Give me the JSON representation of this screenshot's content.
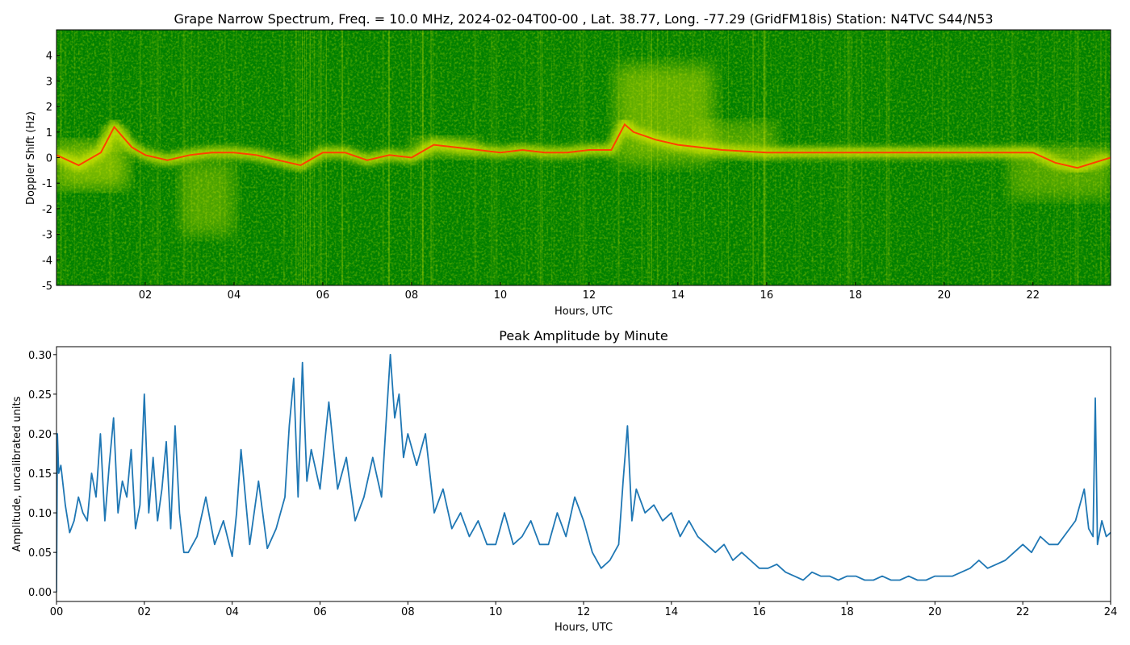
{
  "figure": {
    "background": "#ffffff"
  },
  "chart_data": [
    {
      "type": "heatmap",
      "title": "Grape Narrow Spectrum, Freq. = 10.0 MHz, 2024-02-04T00-00 , Lat.  38.77, Long. -77.29 (GridFM18is) Station: N4TVC S44/N53",
      "xlabel": "Hours, UTC",
      "ylabel": "Doppler Shift (Hz)",
      "xlim": [
        0,
        23.75
      ],
      "ylim": [
        -5,
        5
      ],
      "xticks": [
        2,
        4,
        6,
        8,
        10,
        12,
        14,
        16,
        18,
        20,
        22
      ],
      "xtick_labels": [
        "02",
        "04",
        "06",
        "08",
        "10",
        "12",
        "14",
        "16",
        "18",
        "20",
        "22"
      ],
      "yticks": [
        -5,
        -4,
        -3,
        -2,
        -1,
        0,
        1,
        2,
        3,
        4
      ],
      "ytick_labels": [
        "-5",
        "-4",
        "-3",
        "-2",
        "-1",
        "0",
        "1",
        "2",
        "3",
        "4"
      ],
      "colors": {
        "background": "#008000",
        "mid": "#d8e600",
        "high": "#ff4000"
      },
      "doppler_trace": {
        "x": [
          0,
          0.5,
          1.0,
          1.3,
          1.7,
          2.0,
          2.5,
          3.0,
          3.5,
          4.0,
          4.5,
          5.0,
          5.5,
          6.0,
          6.5,
          7.0,
          7.5,
          8.0,
          8.5,
          9.0,
          9.5,
          10.0,
          10.5,
          11.0,
          11.5,
          12.0,
          12.5,
          12.8,
          13.0,
          13.5,
          14.0,
          14.5,
          15.0,
          16.0,
          17.0,
          18.0,
          19.0,
          20.0,
          21.0,
          22.0,
          22.5,
          23.0,
          23.75
        ],
        "y": [
          0.1,
          -0.3,
          0.2,
          1.2,
          0.4,
          0.1,
          -0.1,
          0.1,
          0.2,
          0.2,
          0.1,
          -0.1,
          -0.3,
          0.2,
          0.2,
          -0.1,
          0.1,
          0.0,
          0.5,
          0.4,
          0.3,
          0.2,
          0.3,
          0.2,
          0.2,
          0.3,
          0.3,
          1.3,
          1.0,
          0.7,
          0.5,
          0.4,
          0.3,
          0.2,
          0.2,
          0.2,
          0.2,
          0.2,
          0.2,
          0.2,
          -0.2,
          -0.4,
          0.0
        ]
      }
    },
    {
      "type": "line",
      "title": "Peak Amplitude by Minute",
      "xlabel": "Hours, UTC",
      "ylabel": "Amplitude, uncalibrated units",
      "xlim": [
        0,
        24
      ],
      "ylim": [
        -0.012,
        0.31
      ],
      "xticks": [
        0,
        2,
        4,
        6,
        8,
        10,
        12,
        14,
        16,
        18,
        20,
        22,
        24
      ],
      "xtick_labels": [
        "00",
        "02",
        "04",
        "06",
        "08",
        "10",
        "12",
        "14",
        "16",
        "18",
        "20",
        "22",
        "24"
      ],
      "yticks": [
        0.0,
        0.05,
        0.1,
        0.15,
        0.2,
        0.25,
        0.3
      ],
      "ytick_labels": [
        "0.00",
        "0.05",
        "0.10",
        "0.15",
        "0.20",
        "0.25",
        "0.30"
      ],
      "line_color": "#1f77b4",
      "series": [
        {
          "x": [
            0,
            0.02,
            0.05,
            0.1,
            0.2,
            0.3,
            0.4,
            0.5,
            0.6,
            0.7,
            0.8,
            0.9,
            1.0,
            1.1,
            1.2,
            1.3,
            1.4,
            1.5,
            1.6,
            1.7,
            1.8,
            1.9,
            2.0,
            2.1,
            2.2,
            2.3,
            2.4,
            2.5,
            2.6,
            2.7,
            2.8,
            2.9,
            3.0,
            3.2,
            3.4,
            3.6,
            3.8,
            4.0,
            4.1,
            4.2,
            4.4,
            4.6,
            4.8,
            5.0,
            5.2,
            5.3,
            5.4,
            5.5,
            5.6,
            5.7,
            5.8,
            6.0,
            6.2,
            6.4,
            6.6,
            6.8,
            7.0,
            7.2,
            7.4,
            7.5,
            7.6,
            7.7,
            7.8,
            7.9,
            8.0,
            8.2,
            8.4,
            8.6,
            8.8,
            9.0,
            9.2,
            9.4,
            9.6,
            9.8,
            10.0,
            10.2,
            10.4,
            10.6,
            10.8,
            11.0,
            11.2,
            11.4,
            11.6,
            11.8,
            12.0,
            12.2,
            12.4,
            12.6,
            12.8,
            12.9,
            13.0,
            13.1,
            13.2,
            13.4,
            13.6,
            13.8,
            14.0,
            14.2,
            14.4,
            14.6,
            14.8,
            15.0,
            15.2,
            15.4,
            15.6,
            15.8,
            16.0,
            16.2,
            16.4,
            16.6,
            16.8,
            17.0,
            17.2,
            17.4,
            17.6,
            17.8,
            18.0,
            18.2,
            18.4,
            18.6,
            18.8,
            19.0,
            19.2,
            19.4,
            19.6,
            19.8,
            20.0,
            20.2,
            20.4,
            20.6,
            20.8,
            21.0,
            21.2,
            21.4,
            21.6,
            21.8,
            22.0,
            22.2,
            22.4,
            22.6,
            22.8,
            23.0,
            23.2,
            23.4,
            23.5,
            23.6,
            23.65,
            23.7,
            23.8,
            23.9,
            24.0
          ],
          "values": [
            0.0,
            0.2,
            0.15,
            0.16,
            0.11,
            0.075,
            0.09,
            0.12,
            0.1,
            0.09,
            0.15,
            0.12,
            0.2,
            0.09,
            0.16,
            0.22,
            0.1,
            0.14,
            0.12,
            0.18,
            0.08,
            0.11,
            0.25,
            0.1,
            0.17,
            0.09,
            0.13,
            0.19,
            0.08,
            0.21,
            0.1,
            0.05,
            0.05,
            0.07,
            0.12,
            0.06,
            0.09,
            0.045,
            0.1,
            0.18,
            0.06,
            0.14,
            0.055,
            0.08,
            0.12,
            0.21,
            0.27,
            0.12,
            0.29,
            0.14,
            0.18,
            0.13,
            0.24,
            0.13,
            0.17,
            0.09,
            0.12,
            0.17,
            0.12,
            0.21,
            0.3,
            0.22,
            0.25,
            0.17,
            0.2,
            0.16,
            0.2,
            0.1,
            0.13,
            0.08,
            0.1,
            0.07,
            0.09,
            0.06,
            0.06,
            0.1,
            0.06,
            0.07,
            0.09,
            0.06,
            0.06,
            0.1,
            0.07,
            0.12,
            0.09,
            0.05,
            0.03,
            0.04,
            0.06,
            0.14,
            0.21,
            0.09,
            0.13,
            0.1,
            0.11,
            0.09,
            0.1,
            0.07,
            0.09,
            0.07,
            0.06,
            0.05,
            0.06,
            0.04,
            0.05,
            0.04,
            0.03,
            0.03,
            0.035,
            0.025,
            0.02,
            0.015,
            0.025,
            0.02,
            0.02,
            0.015,
            0.02,
            0.02,
            0.015,
            0.015,
            0.02,
            0.015,
            0.015,
            0.02,
            0.015,
            0.015,
            0.02,
            0.02,
            0.02,
            0.025,
            0.03,
            0.04,
            0.03,
            0.035,
            0.04,
            0.05,
            0.06,
            0.05,
            0.07,
            0.06,
            0.06,
            0.075,
            0.09,
            0.13,
            0.08,
            0.07,
            0.245,
            0.06,
            0.09,
            0.07,
            0.075
          ]
        }
      ]
    }
  ]
}
